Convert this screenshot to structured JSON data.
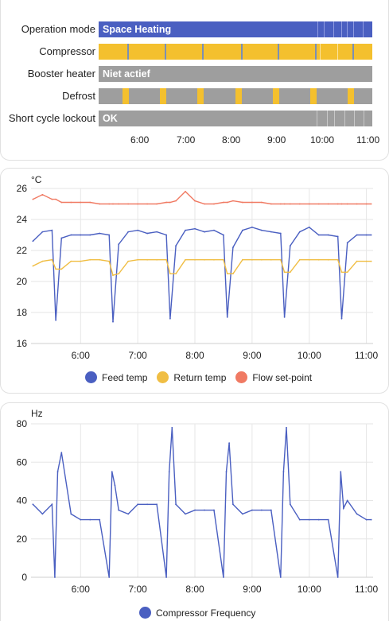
{
  "timeline": {
    "rows": [
      {
        "label": "Operation mode",
        "state": "Space Heating",
        "color": "#4a5fc1"
      },
      {
        "label": "Compressor",
        "state": "",
        "color": "#f4c02e"
      },
      {
        "label": "Booster heater",
        "state": "Niet actief",
        "color": "#9e9e9e"
      },
      {
        "label": "Defrost",
        "state": "",
        "color": "#9e9e9e"
      },
      {
        "label": "Short cycle lockout",
        "state": "OK",
        "color": "#9e9e9e"
      }
    ],
    "axis": [
      "6:00",
      "7:00",
      "8:00",
      "9:00",
      "10:00",
      "11:00"
    ],
    "defrost_active_color": "#f4c02e"
  },
  "temp_chart": {
    "unit": "°C",
    "y_ticks": [
      "26",
      "24",
      "22",
      "20",
      "18",
      "16"
    ],
    "x_ticks": [
      "6:00",
      "7:00",
      "8:00",
      "9:00",
      "10:00",
      "11:00"
    ],
    "legend": [
      {
        "name": "Feed temp",
        "color": "#4a5fc1"
      },
      {
        "name": "Return temp",
        "color": "#f0be44"
      },
      {
        "name": "Flow set-point",
        "color": "#f07a63"
      }
    ]
  },
  "freq_chart": {
    "unit": "Hz",
    "y_ticks": [
      "80",
      "60",
      "40",
      "20",
      "0"
    ],
    "x_ticks": [
      "6:00",
      "7:00",
      "8:00",
      "9:00",
      "10:00",
      "11:00"
    ],
    "legend": [
      {
        "name": "Compressor Frequency",
        "color": "#4a5fc1"
      }
    ]
  },
  "chart_data": [
    {
      "type": "line",
      "ylabel": "°C",
      "ylim": [
        16,
        26
      ],
      "x": [
        "5:10",
        "5:20",
        "5:30",
        "5:34",
        "5:40",
        "5:50",
        "6:00",
        "6:10",
        "6:20",
        "6:30",
        "6:34",
        "6:40",
        "6:50",
        "7:00",
        "7:10",
        "7:20",
        "7:30",
        "7:34",
        "7:40",
        "7:50",
        "8:00",
        "8:10",
        "8:20",
        "8:30",
        "8:34",
        "8:40",
        "8:50",
        "9:00",
        "9:10",
        "9:20",
        "9:30",
        "9:34",
        "9:40",
        "9:50",
        "10:00",
        "10:10",
        "10:20",
        "10:30",
        "10:34",
        "10:40",
        "10:50",
        "11:00",
        "11:05"
      ],
      "series": [
        {
          "name": "Feed temp",
          "values": [
            22.6,
            23.2,
            23.3,
            17.5,
            22.8,
            23.0,
            23.0,
            23.0,
            23.1,
            23.0,
            17.4,
            22.4,
            23.2,
            23.3,
            23.1,
            23.2,
            23.0,
            17.6,
            22.3,
            23.3,
            23.4,
            23.2,
            23.3,
            23.0,
            17.7,
            22.2,
            23.3,
            23.5,
            23.3,
            23.2,
            23.1,
            17.7,
            22.3,
            23.2,
            23.5,
            23.0,
            23.0,
            22.9,
            17.6,
            22.5,
            23.0,
            23.0,
            23.0
          ]
        },
        {
          "name": "Return temp",
          "values": [
            21.0,
            21.3,
            21.4,
            20.8,
            20.8,
            21.3,
            21.3,
            21.4,
            21.4,
            21.3,
            20.4,
            20.5,
            21.3,
            21.4,
            21.4,
            21.4,
            21.4,
            20.5,
            20.5,
            21.4,
            21.4,
            21.4,
            21.4,
            21.4,
            20.5,
            20.5,
            21.4,
            21.4,
            21.4,
            21.4,
            21.4,
            20.6,
            20.6,
            21.4,
            21.4,
            21.4,
            21.4,
            21.4,
            20.6,
            20.6,
            21.3,
            21.3,
            21.3
          ]
        },
        {
          "name": "Flow set-point",
          "values": [
            25.3,
            25.6,
            25.3,
            25.3,
            25.1,
            25.1,
            25.1,
            25.1,
            25.0,
            25.0,
            25.0,
            25.0,
            25.0,
            25.0,
            25.0,
            25.0,
            25.1,
            25.1,
            25.2,
            25.8,
            25.2,
            25.0,
            25.0,
            25.1,
            25.1,
            25.2,
            25.1,
            25.1,
            25.1,
            25.0,
            25.0,
            25.0,
            25.0,
            25.0,
            25.0,
            25.0,
            25.0,
            25.0,
            25.0,
            25.0,
            25.0,
            25.0,
            25.0
          ]
        }
      ]
    },
    {
      "type": "line",
      "ylabel": "Hz",
      "ylim": [
        0,
        80
      ],
      "x": [
        "5:10",
        "5:20",
        "5:30",
        "5:33",
        "5:36",
        "5:40",
        "5:50",
        "6:00",
        "6:10",
        "6:20",
        "6:30",
        "6:33",
        "6:36",
        "6:40",
        "6:50",
        "7:00",
        "7:10",
        "7:20",
        "7:30",
        "7:33",
        "7:36",
        "7:40",
        "7:50",
        "8:00",
        "8:10",
        "8:20",
        "8:30",
        "8:33",
        "8:36",
        "8:40",
        "8:50",
        "9:00",
        "9:10",
        "9:20",
        "9:30",
        "9:33",
        "9:36",
        "9:40",
        "9:50",
        "10:00",
        "10:10",
        "10:20",
        "10:30",
        "10:33",
        "10:36",
        "10:40",
        "10:50",
        "11:00",
        "11:05"
      ],
      "series": [
        {
          "name": "Compressor Frequency",
          "values": [
            38,
            33,
            38,
            0,
            55,
            65,
            33,
            30,
            30,
            30,
            0,
            55,
            48,
            35,
            33,
            38,
            38,
            38,
            0,
            55,
            78,
            38,
            33,
            35,
            35,
            35,
            0,
            55,
            70,
            38,
            33,
            35,
            35,
            35,
            0,
            55,
            78,
            38,
            30,
            30,
            30,
            30,
            0,
            55,
            36,
            40,
            33,
            30,
            30
          ]
        }
      ]
    }
  ]
}
